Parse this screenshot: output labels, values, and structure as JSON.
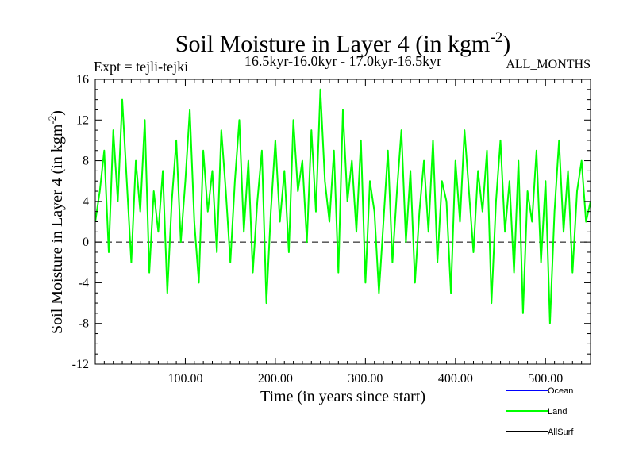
{
  "chart_data": {
    "type": "line",
    "title_main": "Soil Moisture in Layer 4 (in kgm",
    "title_exp": "-2",
    "title_close": ")",
    "subtitle": "16.5kyr-16.0kyr - 17.0kyr-16.5kyr",
    "expt_label": "Expt = tejli-tejki",
    "months_label": "ALL_MONTHS",
    "xlabel": "Time (in years since start)",
    "ylabel_main": "Soil Moisture in Layer 4 (in kgm",
    "ylabel_exp": "-2",
    "ylabel_close": ")",
    "xlim": [
      0,
      550
    ],
    "ylim": [
      -12,
      16
    ],
    "x_ticks": [
      100,
      200,
      300,
      400,
      500
    ],
    "x_tick_labels": [
      "100.00",
      "200.00",
      "300.00",
      "400.00",
      "500.00"
    ],
    "y_ticks": [
      -12,
      -8,
      -4,
      0,
      4,
      8,
      12,
      16
    ],
    "y_tick_labels": [
      "-12",
      "-8",
      "-4",
      "0",
      "4",
      "8",
      "12",
      "16"
    ],
    "reference_line": 0,
    "series": [
      {
        "name": "Ocean",
        "color": "#0000ff",
        "x": [],
        "values": []
      },
      {
        "name": "Land",
        "color": "#00ff00",
        "x": [
          0,
          5,
          10,
          15,
          20,
          25,
          30,
          35,
          40,
          45,
          50,
          55,
          60,
          65,
          70,
          75,
          80,
          85,
          90,
          95,
          100,
          105,
          110,
          115,
          120,
          125,
          130,
          135,
          140,
          145,
          150,
          155,
          160,
          165,
          170,
          175,
          180,
          185,
          190,
          195,
          200,
          205,
          210,
          215,
          220,
          225,
          230,
          235,
          240,
          245,
          250,
          255,
          260,
          265,
          270,
          275,
          280,
          285,
          290,
          295,
          300,
          305,
          310,
          315,
          320,
          325,
          330,
          335,
          340,
          345,
          350,
          355,
          360,
          365,
          370,
          375,
          380,
          385,
          390,
          395,
          400,
          405,
          410,
          415,
          420,
          425,
          430,
          435,
          440,
          445,
          450,
          455,
          460,
          465,
          470,
          475,
          480,
          485,
          490,
          495,
          500,
          505,
          510,
          515,
          520,
          525,
          530,
          535,
          540,
          545,
          550
        ],
        "values": [
          2,
          5,
          9,
          -1,
          11,
          4,
          14,
          6,
          -2,
          8,
          3,
          12,
          -3,
          5,
          1,
          7,
          -5,
          4,
          10,
          0,
          6,
          13,
          2,
          -4,
          9,
          3,
          7,
          -1,
          11,
          5,
          -2,
          6,
          12,
          1,
          8,
          -3,
          4,
          9,
          -6,
          3,
          10,
          2,
          7,
          -1,
          12,
          5,
          8,
          0,
          11,
          3,
          15,
          6,
          2,
          9,
          -3,
          13,
          4,
          8,
          1,
          10,
          -4,
          6,
          3,
          -5,
          2,
          9,
          -2,
          5,
          11,
          0,
          7,
          -4,
          3,
          8,
          1,
          10,
          -2,
          6,
          4,
          -5,
          8,
          2,
          11,
          5,
          -1,
          7,
          3,
          9,
          -6,
          4,
          10,
          1,
          6,
          -3,
          8,
          -7,
          5,
          2,
          9,
          -2,
          6,
          -8,
          3,
          10,
          1,
          7,
          -3,
          5,
          8,
          2,
          4
        ]
      },
      {
        "name": "AllSurf",
        "color": "#000000",
        "x": [],
        "values": []
      }
    ]
  }
}
